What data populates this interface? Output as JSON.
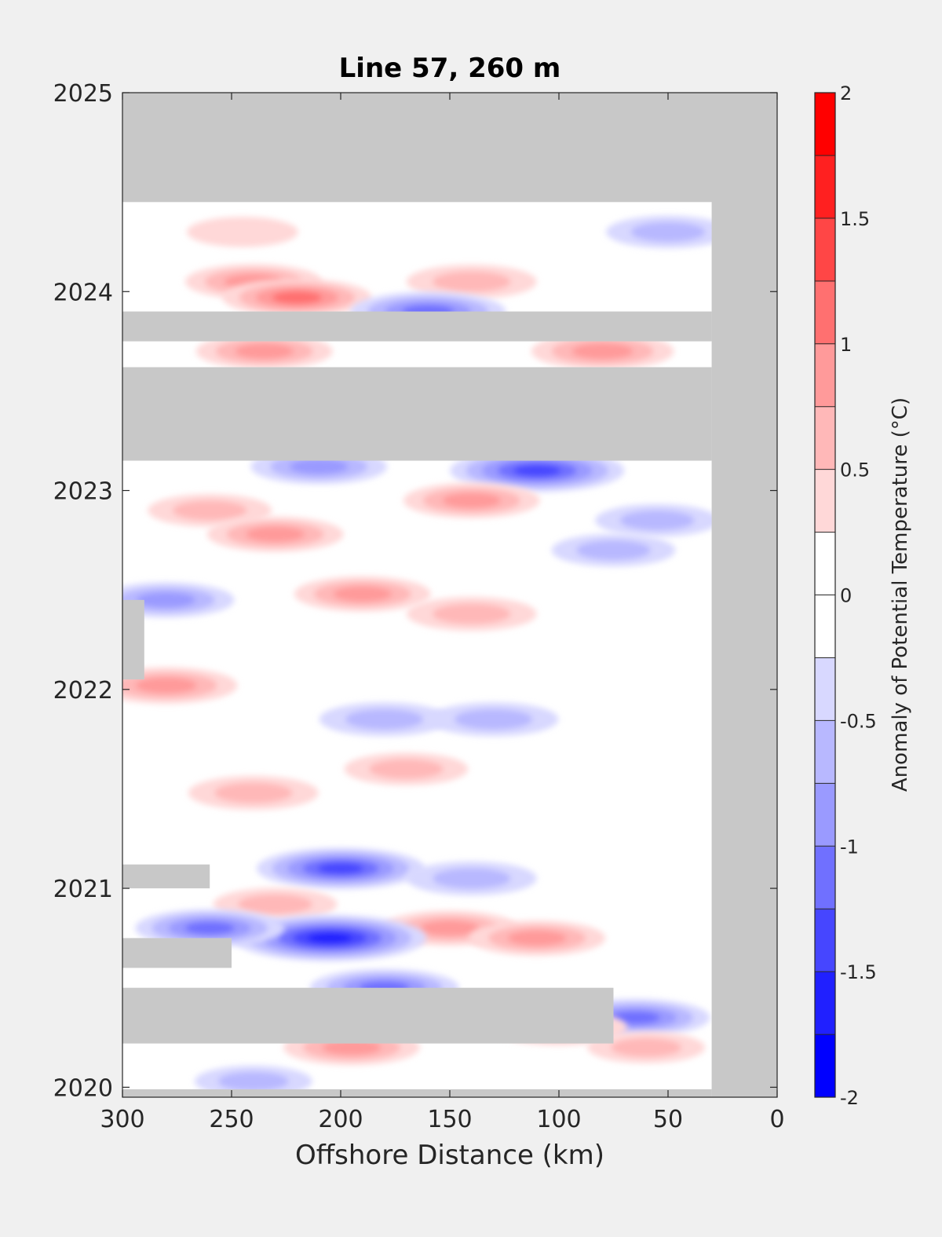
{
  "chart_data": {
    "type": "heatmap",
    "title": "Line 57, 260 m",
    "xlabel": "Offshore Distance (km)",
    "ylabel": "",
    "xlim": [
      300,
      0
    ],
    "ylim": [
      2019.95,
      2025
    ],
    "x_ticks": [
      300,
      250,
      200,
      150,
      100,
      50,
      0
    ],
    "y_ticks": [
      2020,
      2021,
      2022,
      2023,
      2024,
      2025
    ],
    "colorbar": {
      "label": "Anomaly of Potential Temperature (°C)",
      "range": [
        -2,
        2
      ],
      "levels": [
        -2,
        -1.75,
        -1.5,
        -1.25,
        -1,
        -0.75,
        -0.5,
        -0.25,
        0,
        0.25,
        0.5,
        0.75,
        1,
        1.25,
        1.5,
        1.75,
        2
      ],
      "tick_values": [
        -2,
        -1.5,
        -1,
        -0.5,
        0,
        0.5,
        1,
        1.5,
        2
      ],
      "tick_labels": [
        "-2",
        "-1.5",
        "-1",
        "-0.5",
        "0",
        "0.5",
        "1",
        "1.5",
        "2"
      ],
      "colors": [
        "#0000ff",
        "#2020ff",
        "#4646ff",
        "#7070ff",
        "#9a9aff",
        "#b8b8ff",
        "#d8d8ff",
        "#ffffff",
        "#ffffff",
        "#ffd8d8",
        "#ffb8b8",
        "#ff9a9a",
        "#ff7070",
        "#ff4646",
        "#ff2020",
        "#ff0000"
      ]
    },
    "missing_color": "#c8c8c8",
    "missing_regions": [
      {
        "x": [
          0,
          300
        ],
        "y": [
          2024.45,
          2025
        ]
      },
      {
        "x": [
          0,
          30
        ],
        "y": [
          2019.95,
          2025
        ]
      },
      {
        "x": [
          30,
          300
        ],
        "y": [
          2023.15,
          2023.62
        ]
      },
      {
        "x": [
          30,
          300
        ],
        "y": [
          2023.75,
          2023.9
        ]
      },
      {
        "x": [
          30,
          300
        ],
        "y": [
          2019.95,
          2019.99
        ]
      },
      {
        "x": [
          290,
          300
        ],
        "y": [
          2022.05,
          2022.45
        ]
      },
      {
        "x": [
          260,
          300
        ],
        "y": [
          2021.0,
          2021.12
        ]
      },
      {
        "x": [
          250,
          300
        ],
        "y": [
          2020.6,
          2020.75
        ]
      },
      {
        "x": [
          75,
          300
        ],
        "y": [
          2020.22,
          2020.5
        ]
      }
    ],
    "anomalies": [
      {
        "x": 245,
        "y": 2024.3,
        "value": 0.4
      },
      {
        "x": 240,
        "y": 2024.05,
        "value": 0.8
      },
      {
        "x": 220,
        "y": 2023.97,
        "value": 1.0
      },
      {
        "x": 140,
        "y": 2024.05,
        "value": 0.7
      },
      {
        "x": 160,
        "y": 2023.9,
        "value": -1.1
      },
      {
        "x": 50,
        "y": 2024.3,
        "value": -0.6
      },
      {
        "x": 235,
        "y": 2023.7,
        "value": 0.8
      },
      {
        "x": 80,
        "y": 2023.7,
        "value": 0.9
      },
      {
        "x": 110,
        "y": 2023.1,
        "value": -1.4
      },
      {
        "x": 210,
        "y": 2023.12,
        "value": -0.8
      },
      {
        "x": 140,
        "y": 2022.95,
        "value": 0.8
      },
      {
        "x": 260,
        "y": 2022.9,
        "value": 0.6
      },
      {
        "x": 230,
        "y": 2022.78,
        "value": 0.8
      },
      {
        "x": 55,
        "y": 2022.85,
        "value": -0.6
      },
      {
        "x": 75,
        "y": 2022.7,
        "value": -0.6
      },
      {
        "x": 280,
        "y": 2022.45,
        "value": -0.8
      },
      {
        "x": 190,
        "y": 2022.48,
        "value": 0.8
      },
      {
        "x": 140,
        "y": 2022.38,
        "value": 0.7
      },
      {
        "x": 280,
        "y": 2022.02,
        "value": 0.9
      },
      {
        "x": 180,
        "y": 2021.85,
        "value": -0.7
      },
      {
        "x": 130,
        "y": 2021.85,
        "value": -0.7
      },
      {
        "x": 170,
        "y": 2021.6,
        "value": 0.6
      },
      {
        "x": 240,
        "y": 2021.48,
        "value": 0.7
      },
      {
        "x": 200,
        "y": 2021.1,
        "value": -1.3
      },
      {
        "x": 140,
        "y": 2021.05,
        "value": -0.7
      },
      {
        "x": 230,
        "y": 2020.92,
        "value": 0.6
      },
      {
        "x": 150,
        "y": 2020.8,
        "value": 0.8
      },
      {
        "x": 110,
        "y": 2020.75,
        "value": 0.8
      },
      {
        "x": 205,
        "y": 2020.75,
        "value": -1.7
      },
      {
        "x": 260,
        "y": 2020.8,
        "value": -1.0
      },
      {
        "x": 180,
        "y": 2020.5,
        "value": -1.0
      },
      {
        "x": 65,
        "y": 2020.35,
        "value": -1.0
      },
      {
        "x": 100,
        "y": 2020.3,
        "value": 0.8
      },
      {
        "x": 195,
        "y": 2020.2,
        "value": 0.8
      },
      {
        "x": 60,
        "y": 2020.2,
        "value": 0.5
      },
      {
        "x": 240,
        "y": 2020.03,
        "value": -0.5
      }
    ]
  }
}
